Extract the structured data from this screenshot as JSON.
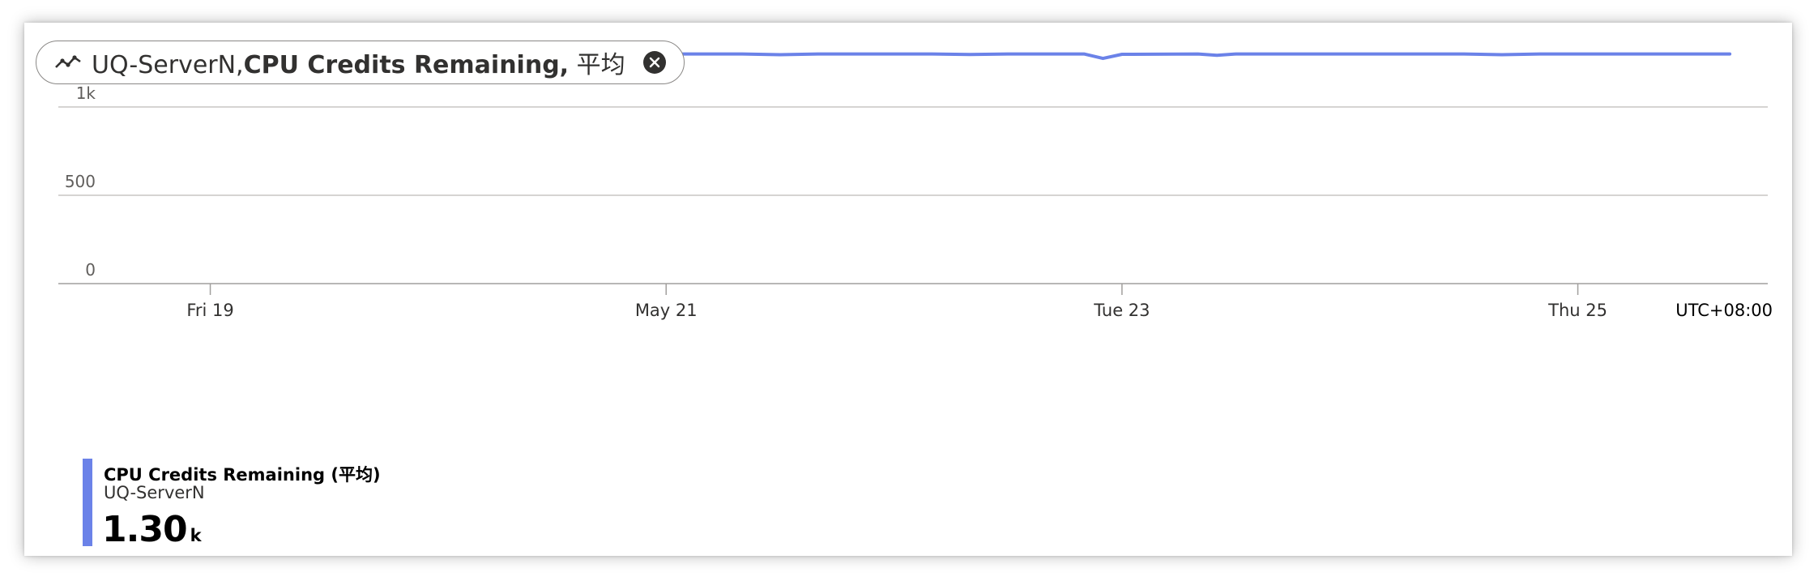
{
  "pill": {
    "resource": "UQ-ServerN,",
    "metric": "CPU Credits Remaining,",
    "aggregation": "平均",
    "icon": "line-chart-icon",
    "close_icon": "close-circle-icon"
  },
  "chart_data": {
    "type": "line",
    "title": "",
    "xlabel": "",
    "ylabel": "",
    "ylim": [
      0,
      1500
    ],
    "yticks": [
      {
        "value": 0,
        "label": "0"
      },
      {
        "value": 500,
        "label": "500"
      },
      {
        "value": 1000,
        "label": "1k"
      }
    ],
    "xlim": [
      "2023-05-18T08:00",
      "2023-05-25T20:00"
    ],
    "xticks": [
      {
        "value": "2023-05-19T00:00",
        "label": "Fri 19"
      },
      {
        "value": "2023-05-21T00:00",
        "label": "May 21"
      },
      {
        "value": "2023-05-23T00:00",
        "label": "Tue 23"
      },
      {
        "value": "2023-05-25T00:00",
        "label": "Thu 25"
      }
    ],
    "timezone": "UTC+08:00",
    "grid": true,
    "series": [
      {
        "name": "CPU Credits Remaining (平均)",
        "color": "#6b82e8",
        "points": [
          {
            "x": "2023-05-18T16:00",
            "y": 1300
          },
          {
            "x": "2023-05-19T08:00",
            "y": 1300
          },
          {
            "x": "2023-05-19T12:00",
            "y": 1298
          },
          {
            "x": "2023-05-19T16:00",
            "y": 1300
          },
          {
            "x": "2023-05-20T12:00",
            "y": 1300
          },
          {
            "x": "2023-05-21T08:00",
            "y": 1300
          },
          {
            "x": "2023-05-21T12:00",
            "y": 1296
          },
          {
            "x": "2023-05-21T16:00",
            "y": 1300
          },
          {
            "x": "2023-05-22T04:00",
            "y": 1300
          },
          {
            "x": "2023-05-22T08:00",
            "y": 1297
          },
          {
            "x": "2023-05-22T12:00",
            "y": 1300
          },
          {
            "x": "2023-05-22T20:00",
            "y": 1300
          },
          {
            "x": "2023-05-22T22:00",
            "y": 1275
          },
          {
            "x": "2023-05-23T00:00",
            "y": 1298
          },
          {
            "x": "2023-05-23T08:00",
            "y": 1300
          },
          {
            "x": "2023-05-23T10:00",
            "y": 1292
          },
          {
            "x": "2023-05-23T12:00",
            "y": 1300
          },
          {
            "x": "2023-05-24T12:00",
            "y": 1300
          },
          {
            "x": "2023-05-24T16:00",
            "y": 1296
          },
          {
            "x": "2023-05-24T20:00",
            "y": 1300
          },
          {
            "x": "2023-05-25T16:00",
            "y": 1300
          }
        ]
      }
    ]
  },
  "legend": {
    "metric": "CPU Credits Remaining (平均)",
    "resource": "UQ-ServerN",
    "value": "1.30",
    "unit": "k",
    "color": "#6b82e8"
  }
}
